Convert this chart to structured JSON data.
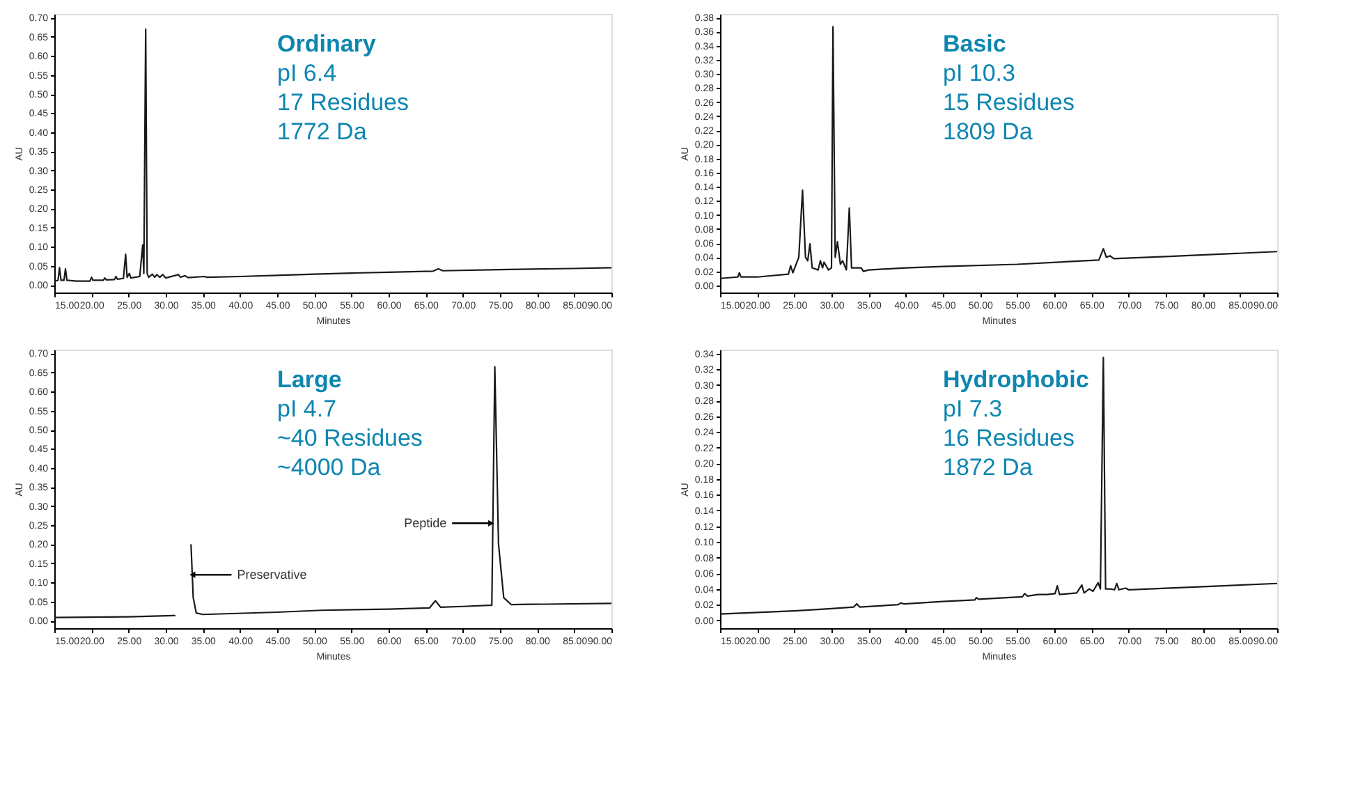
{
  "chart_data": [
    {
      "type": "line",
      "xlabel": "Minutes",
      "ylabel": "AU",
      "annotations": [
        "Ordinary",
        "pI  6.4",
        "17 Residues",
        "1772 Da"
      ],
      "xlim": [
        15,
        90
      ],
      "ylim": [
        -0.02,
        0.71
      ],
      "xticks": [
        {
          "value": 15,
          "label": "15.00"
        },
        {
          "value": 20,
          "label": "20.00"
        },
        {
          "value": 25,
          "label": "25.00"
        },
        {
          "value": 30,
          "label": "30.00"
        },
        {
          "value": 35,
          "label": "35.00"
        },
        {
          "value": 40,
          "label": "40.00"
        },
        {
          "value": 45,
          "label": "45.00"
        },
        {
          "value": 50,
          "label": "50.00"
        },
        {
          "value": 55,
          "label": "55.00"
        },
        {
          "value": 60,
          "label": "60.00"
        },
        {
          "value": 65,
          "label": "65.00"
        },
        {
          "value": 70,
          "label": "70.00"
        },
        {
          "value": 75,
          "label": "75.00"
        },
        {
          "value": 80,
          "label": "80.00"
        },
        {
          "value": 85,
          "label": "85.00"
        },
        {
          "value": 90,
          "label": "90.00"
        }
      ],
      "yticks": [
        {
          "value": 0,
          "label": "0.00"
        },
        {
          "value": 0.05,
          "label": "0.05"
        },
        {
          "value": 0.1,
          "label": "0.10"
        },
        {
          "value": 0.15,
          "label": "0.15"
        },
        {
          "value": 0.2,
          "label": "0.20"
        },
        {
          "value": 0.25,
          "label": "0.25"
        },
        {
          "value": 0.3,
          "label": "0.30"
        },
        {
          "value": 0.35,
          "label": "0.35"
        },
        {
          "value": 0.4,
          "label": "0.40"
        },
        {
          "value": 0.45,
          "label": "0.45"
        },
        {
          "value": 0.5,
          "label": "0.50"
        },
        {
          "value": 0.55,
          "label": "0.55"
        },
        {
          "value": 0.6,
          "label": "0.60"
        },
        {
          "value": 0.65,
          "label": "0.65"
        },
        {
          "value": 0.7,
          "label": "0.70"
        }
      ],
      "x": [
        15.0,
        15.5,
        15.7,
        15.9,
        16.3,
        16.5,
        16.7,
        18,
        19.8,
        20.0,
        20.2,
        21.6,
        21.8,
        22,
        23.1,
        23.3,
        23.5,
        24.3,
        24.6,
        24.8,
        25.1,
        25.3,
        26.5,
        26.9,
        27.05,
        27.3,
        27.5,
        27.7,
        28.2,
        28.5,
        28.8,
        29.2,
        29.6,
        30,
        31.7,
        32,
        32.6,
        33,
        35.2,
        35.5,
        40,
        45,
        50,
        55,
        60,
        66,
        66.7,
        67.3,
        75,
        85,
        90
      ],
      "series": [
        {
          "color": "#1a1a1a",
          "values": [
            0.01,
            0.012,
            0.045,
            0.012,
            0.012,
            0.042,
            0.012,
            0.01,
            0.01,
            0.02,
            0.012,
            0.012,
            0.018,
            0.013,
            0.014,
            0.022,
            0.015,
            0.017,
            0.08,
            0.02,
            0.03,
            0.018,
            0.022,
            0.105,
            0.03,
            0.67,
            0.03,
            0.02,
            0.028,
            0.02,
            0.027,
            0.02,
            0.027,
            0.018,
            0.027,
            0.02,
            0.024,
            0.019,
            0.022,
            0.02,
            0.022,
            0.025,
            0.028,
            0.031,
            0.033,
            0.036,
            0.042,
            0.037,
            0.04,
            0.043,
            0.045
          ]
        }
      ]
    },
    {
      "type": "line",
      "xlabel": "Minutes",
      "ylabel": "AU",
      "annotations": [
        "Basic",
        "pI  10.3",
        "15 Residues",
        "1809 Da"
      ],
      "xlim": [
        15,
        90
      ],
      "ylim": [
        -0.01,
        0.385
      ],
      "xticks": [
        {
          "value": 15,
          "label": "15.00"
        },
        {
          "value": 20,
          "label": "20.00"
        },
        {
          "value": 25,
          "label": "25.00"
        },
        {
          "value": 30,
          "label": "30.00"
        },
        {
          "value": 35,
          "label": "35.00"
        },
        {
          "value": 40,
          "label": "40.00"
        },
        {
          "value": 45,
          "label": "45.00"
        },
        {
          "value": 50,
          "label": "50.00"
        },
        {
          "value": 55,
          "label": "55.00"
        },
        {
          "value": 60,
          "label": "60.00"
        },
        {
          "value": 65,
          "label": "65.00"
        },
        {
          "value": 70,
          "label": "70.00"
        },
        {
          "value": 75,
          "label": "75.00"
        },
        {
          "value": 80,
          "label": "80.00"
        },
        {
          "value": 85,
          "label": "85.00"
        },
        {
          "value": 90,
          "label": "90.00"
        }
      ],
      "yticks": [
        {
          "value": 0,
          "label": "0.00"
        },
        {
          "value": 0.02,
          "label": "0.02"
        },
        {
          "value": 0.04,
          "label": "0.04"
        },
        {
          "value": 0.06,
          "label": "0.06"
        },
        {
          "value": 0.08,
          "label": "0.08"
        },
        {
          "value": 0.1,
          "label": "0.10"
        },
        {
          "value": 0.12,
          "label": "0.12"
        },
        {
          "value": 0.14,
          "label": "0.14"
        },
        {
          "value": 0.16,
          "label": "0.16"
        },
        {
          "value": 0.18,
          "label": "0.18"
        },
        {
          "value": 0.2,
          "label": "0.20"
        },
        {
          "value": 0.22,
          "label": "0.22"
        },
        {
          "value": 0.24,
          "label": "0.24"
        },
        {
          "value": 0.26,
          "label": "0.26"
        },
        {
          "value": 0.28,
          "label": "0.28"
        },
        {
          "value": 0.3,
          "label": "0.30"
        },
        {
          "value": 0.32,
          "label": "0.32"
        },
        {
          "value": 0.34,
          "label": "0.34"
        },
        {
          "value": 0.36,
          "label": "0.36"
        },
        {
          "value": 0.38,
          "label": "0.38"
        }
      ],
      "x": [
        15,
        17.4,
        17.6,
        17.8,
        20,
        24.2,
        24.5,
        24.8,
        25.6,
        26.1,
        26.5,
        26.8,
        27.1,
        27.4,
        28.2,
        28.5,
        28.8,
        29.0,
        29.6,
        30.0,
        30.2,
        30.5,
        30.8,
        31.2,
        31.5,
        32,
        32.4,
        32.7,
        34,
        34.3,
        35,
        40,
        45,
        55,
        66,
        66.6,
        67,
        67.5,
        68,
        75,
        90
      ],
      "series": [
        {
          "color": "#1a1a1a",
          "values": [
            0.01,
            0.012,
            0.018,
            0.012,
            0.012,
            0.016,
            0.028,
            0.018,
            0.04,
            0.135,
            0.04,
            0.035,
            0.059,
            0.025,
            0.022,
            0.035,
            0.025,
            0.033,
            0.022,
            0.025,
            0.367,
            0.04,
            0.062,
            0.03,
            0.035,
            0.022,
            0.11,
            0.025,
            0.025,
            0.02,
            0.022,
            0.025,
            0.027,
            0.03,
            0.036,
            0.052,
            0.04,
            0.042,
            0.038,
            0.041,
            0.048
          ]
        }
      ]
    },
    {
      "type": "line",
      "xlabel": "Minutes",
      "ylabel": "AU",
      "annotations": [
        "Large",
        "pI  4.7",
        "~40 Residues",
        "~4000 Da",
        {
          "text": "Preservative",
          "x": 33.6,
          "y": 0.12
        },
        {
          "text": "Peptide",
          "x": 73.8,
          "y": 0.255
        }
      ],
      "xlim": [
        15,
        90
      ],
      "ylim": [
        -0.02,
        0.71
      ],
      "xticks": [
        {
          "value": 15,
          "label": "15.00"
        },
        {
          "value": 20,
          "label": "20.00"
        },
        {
          "value": 25,
          "label": "25.00"
        },
        {
          "value": 30,
          "label": "30.00"
        },
        {
          "value": 35,
          "label": "35.00"
        },
        {
          "value": 40,
          "label": "40.00"
        },
        {
          "value": 45,
          "label": "45.00"
        },
        {
          "value": 50,
          "label": "50.00"
        },
        {
          "value": 55,
          "label": "55.00"
        },
        {
          "value": 60,
          "label": "60.00"
        },
        {
          "value": 65,
          "label": "65.00"
        },
        {
          "value": 70,
          "label": "70.00"
        },
        {
          "value": 75,
          "label": "75.00"
        },
        {
          "value": 80,
          "label": "80.00"
        },
        {
          "value": 85,
          "label": "85.00"
        },
        {
          "value": 90,
          "label": "90.00"
        }
      ],
      "yticks": [
        {
          "value": 0,
          "label": "0.00"
        },
        {
          "value": 0.05,
          "label": "0.05"
        },
        {
          "value": 0.1,
          "label": "0.10"
        },
        {
          "value": 0.15,
          "label": "0.15"
        },
        {
          "value": 0.2,
          "label": "0.20"
        },
        {
          "value": 0.25,
          "label": "0.25"
        },
        {
          "value": 0.3,
          "label": "0.30"
        },
        {
          "value": 0.35,
          "label": "0.35"
        },
        {
          "value": 0.4,
          "label": "0.40"
        },
        {
          "value": 0.45,
          "label": "0.45"
        },
        {
          "value": 0.5,
          "label": "0.50"
        },
        {
          "value": 0.55,
          "label": "0.55"
        },
        {
          "value": 0.6,
          "label": "0.60"
        },
        {
          "value": 0.65,
          "label": "0.65"
        },
        {
          "value": 0.7,
          "label": "0.70"
        }
      ],
      "x": [
        15,
        20,
        25,
        31.0,
        31.3,
        31.5,
        33.2,
        33.4,
        33.7,
        34.1,
        35,
        45,
        51,
        60,
        65.5,
        66.3,
        67,
        70,
        73.5,
        73.9,
        74.3,
        74.8,
        75.5,
        76.5,
        81,
        90
      ],
      "series": [
        {
          "color": "#1a1a1a",
          "values": [
            0.008,
            0.009,
            0.01,
            0.013,
            0.013,
            null,
            null,
            0.2,
            0.06,
            0.02,
            0.016,
            0.022,
            0.027,
            0.03,
            0.033,
            0.052,
            0.035,
            0.037,
            0.04,
            0.04,
            0.665,
            0.2,
            0.06,
            0.042,
            0.043,
            0.045
          ]
        }
      ]
    },
    {
      "type": "line",
      "xlabel": "Minutes",
      "ylabel": "AU",
      "annotations": [
        "Hydrophobic",
        "pI  7.3",
        "16 Residues",
        "1872 Da"
      ],
      "xlim": [
        15,
        90
      ],
      "ylim": [
        -0.01,
        0.345
      ],
      "xticks": [
        {
          "value": 15,
          "label": "15.00"
        },
        {
          "value": 20,
          "label": "20.00"
        },
        {
          "value": 25,
          "label": "25.00"
        },
        {
          "value": 30,
          "label": "30.00"
        },
        {
          "value": 35,
          "label": "35.00"
        },
        {
          "value": 40,
          "label": "40.00"
        },
        {
          "value": 45,
          "label": "45.00"
        },
        {
          "value": 50,
          "label": "50.00"
        },
        {
          "value": 55,
          "label": "55.00"
        },
        {
          "value": 60,
          "label": "60.00"
        },
        {
          "value": 65,
          "label": "65.00"
        },
        {
          "value": 70,
          "label": "70.00"
        },
        {
          "value": 75,
          "label": "75.00"
        },
        {
          "value": 80,
          "label": "80.00"
        },
        {
          "value": 85,
          "label": "85.00"
        },
        {
          "value": 90,
          "label": "90.00"
        }
      ],
      "yticks": [
        {
          "value": 0,
          "label": "0.00"
        },
        {
          "value": 0.02,
          "label": "0.02"
        },
        {
          "value": 0.04,
          "label": "0.04"
        },
        {
          "value": 0.06,
          "label": "0.06"
        },
        {
          "value": 0.08,
          "label": "0.08"
        },
        {
          "value": 0.1,
          "label": "0.10"
        },
        {
          "value": 0.12,
          "label": "0.12"
        },
        {
          "value": 0.14,
          "label": "0.14"
        },
        {
          "value": 0.16,
          "label": "0.16"
        },
        {
          "value": 0.18,
          "label": "0.18"
        },
        {
          "value": 0.2,
          "label": "0.20"
        },
        {
          "value": 0.22,
          "label": "0.22"
        },
        {
          "value": 0.24,
          "label": "0.24"
        },
        {
          "value": 0.26,
          "label": "0.26"
        },
        {
          "value": 0.28,
          "label": "0.28"
        },
        {
          "value": 0.3,
          "label": "0.30"
        },
        {
          "value": 0.32,
          "label": "0.32"
        },
        {
          "value": 0.34,
          "label": "0.34"
        }
      ],
      "x": [
        15,
        20,
        25,
        30,
        33.0,
        33.4,
        33.8,
        39.0,
        39.3,
        39.8,
        45,
        49.3,
        49.5,
        49.8,
        55.7,
        56,
        56.4,
        57.8,
        59,
        60.1,
        60.4,
        60.7,
        63,
        63.7,
        64,
        64.7,
        65.2,
        65.9,
        66.2,
        66.6,
        66.9,
        67.5,
        68.1,
        68.4,
        68.7,
        69.6,
        70,
        80,
        90
      ],
      "series": [
        {
          "color": "#1a1a1a",
          "values": [
            0.008,
            0.01,
            0.012,
            0.015,
            0.017,
            0.021,
            0.017,
            0.02,
            0.022,
            0.021,
            0.024,
            0.026,
            0.029,
            0.027,
            0.03,
            0.034,
            0.031,
            0.033,
            0.033,
            0.034,
            0.044,
            0.033,
            0.035,
            0.045,
            0.035,
            0.04,
            0.037,
            0.048,
            0.04,
            0.335,
            0.04,
            0.04,
            0.039,
            0.047,
            0.039,
            0.041,
            0.039,
            0.043,
            0.047
          ]
        }
      ]
    }
  ]
}
